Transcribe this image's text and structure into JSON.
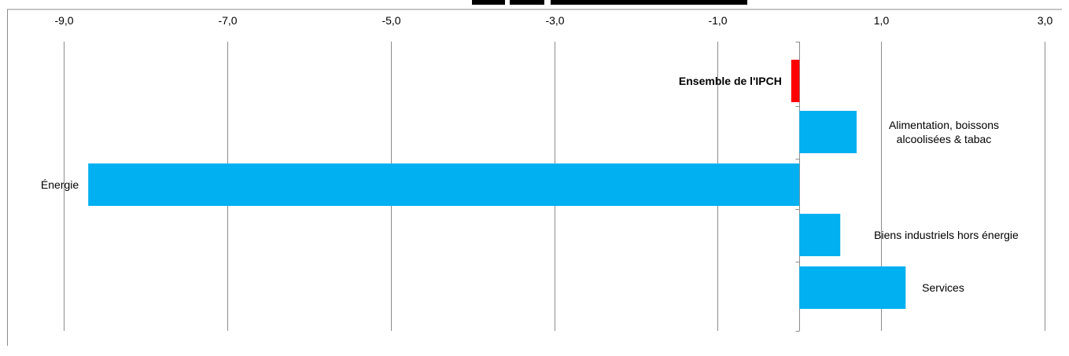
{
  "chart_data": {
    "type": "bar",
    "orientation": "horizontal",
    "title": "",
    "xlabel": "",
    "ylabel": "",
    "xlim": [
      -9.0,
      3.0
    ],
    "xticks": [
      -9.0,
      -7.0,
      -5.0,
      -3.0,
      -1.0,
      1.0,
      3.0
    ],
    "xtick_labels": [
      "-9,0",
      "-7,0",
      "-5,0",
      "-3,0",
      "-1,0",
      "1,0",
      "3,0"
    ],
    "grid": true,
    "legend": "none",
    "categories": [
      "Ensemble de l'IPCH",
      "Alimentation, boissons alcoolisées & tabac",
      "Énergie",
      "Biens industriels hors énergie",
      "Services"
    ],
    "category_lines": [
      [
        "Ensemble de l'IPCH"
      ],
      [
        "Alimentation, boissons",
        "alcoolisées & tabac"
      ],
      [
        "Énergie"
      ],
      [
        "Biens industriels hors énergie"
      ],
      [
        "Services"
      ]
    ],
    "values": [
      -0.1,
      0.7,
      -8.7,
      0.5,
      1.3
    ],
    "bold": [
      true,
      false,
      false,
      false,
      false
    ],
    "colors": [
      "#ff0000",
      "#00b0f0",
      "#00b0f0",
      "#00b0f0",
      "#00b0f0"
    ]
  },
  "colors": {
    "grid": "#8c8c8c",
    "axis": "#8c8c8c"
  }
}
